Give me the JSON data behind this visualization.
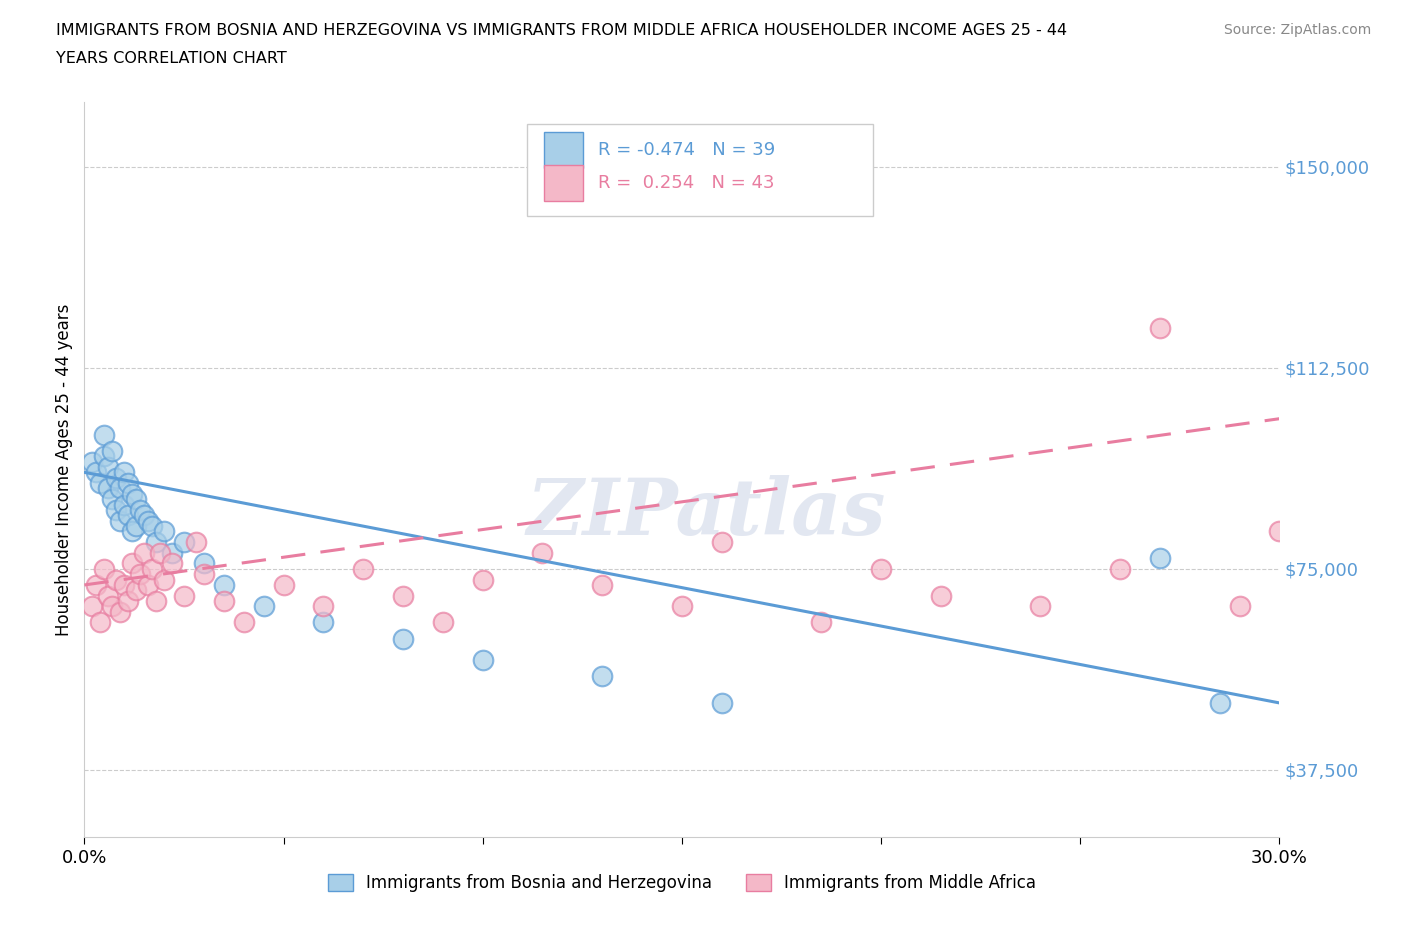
{
  "title_line1": "IMMIGRANTS FROM BOSNIA AND HERZEGOVINA VS IMMIGRANTS FROM MIDDLE AFRICA HOUSEHOLDER INCOME AGES 25 - 44",
  "title_line2": "YEARS CORRELATION CHART",
  "source": "Source: ZipAtlas.com",
  "ylabel": "Householder Income Ages 25 - 44 years",
  "xlim": [
    0.0,
    0.3
  ],
  "ylim": [
    25000,
    162000
  ],
  "yticks": [
    37500,
    75000,
    112500,
    150000
  ],
  "ytick_labels": [
    "$37,500",
    "$75,000",
    "$112,500",
    "$150,000"
  ],
  "xticks": [
    0.0,
    0.05,
    0.1,
    0.15,
    0.2,
    0.25,
    0.3
  ],
  "color_blue": "#a8cfe8",
  "color_blue_edge": "#5b9bd5",
  "color_pink": "#f4b8c8",
  "color_pink_edge": "#e87da0",
  "color_blue_line": "#5b9bd5",
  "color_pink_line": "#e87da0",
  "watermark": "ZIPatlas",
  "blue_scatter_x": [
    0.002,
    0.003,
    0.004,
    0.005,
    0.005,
    0.006,
    0.006,
    0.007,
    0.007,
    0.008,
    0.008,
    0.009,
    0.009,
    0.01,
    0.01,
    0.011,
    0.011,
    0.012,
    0.012,
    0.013,
    0.013,
    0.014,
    0.015,
    0.016,
    0.017,
    0.018,
    0.02,
    0.022,
    0.025,
    0.03,
    0.035,
    0.045,
    0.06,
    0.08,
    0.1,
    0.13,
    0.16,
    0.27,
    0.285
  ],
  "blue_scatter_y": [
    95000,
    93000,
    91000,
    100000,
    96000,
    94000,
    90000,
    97000,
    88000,
    92000,
    86000,
    90000,
    84000,
    93000,
    87000,
    91000,
    85000,
    89000,
    82000,
    88000,
    83000,
    86000,
    85000,
    84000,
    83000,
    80000,
    82000,
    78000,
    80000,
    76000,
    72000,
    68000,
    65000,
    62000,
    58000,
    55000,
    50000,
    77000,
    50000
  ],
  "pink_scatter_x": [
    0.002,
    0.003,
    0.004,
    0.005,
    0.006,
    0.007,
    0.008,
    0.009,
    0.01,
    0.011,
    0.012,
    0.013,
    0.014,
    0.015,
    0.016,
    0.017,
    0.018,
    0.019,
    0.02,
    0.022,
    0.025,
    0.028,
    0.03,
    0.035,
    0.04,
    0.05,
    0.06,
    0.07,
    0.08,
    0.09,
    0.1,
    0.115,
    0.13,
    0.15,
    0.16,
    0.185,
    0.2,
    0.215,
    0.24,
    0.26,
    0.27,
    0.29,
    0.3
  ],
  "pink_scatter_y": [
    68000,
    72000,
    65000,
    75000,
    70000,
    68000,
    73000,
    67000,
    72000,
    69000,
    76000,
    71000,
    74000,
    78000,
    72000,
    75000,
    69000,
    78000,
    73000,
    76000,
    70000,
    80000,
    74000,
    69000,
    65000,
    72000,
    68000,
    75000,
    70000,
    65000,
    73000,
    78000,
    72000,
    68000,
    80000,
    65000,
    75000,
    70000,
    68000,
    75000,
    120000,
    68000,
    82000
  ],
  "legend_r1_label": "R = -0.474   N = 39",
  "legend_r2_label": "R =  0.254   N = 43",
  "bottom_label_blue": "Immigrants from Bosnia and Herzegovina",
  "bottom_label_pink": "Immigrants from Middle Africa"
}
